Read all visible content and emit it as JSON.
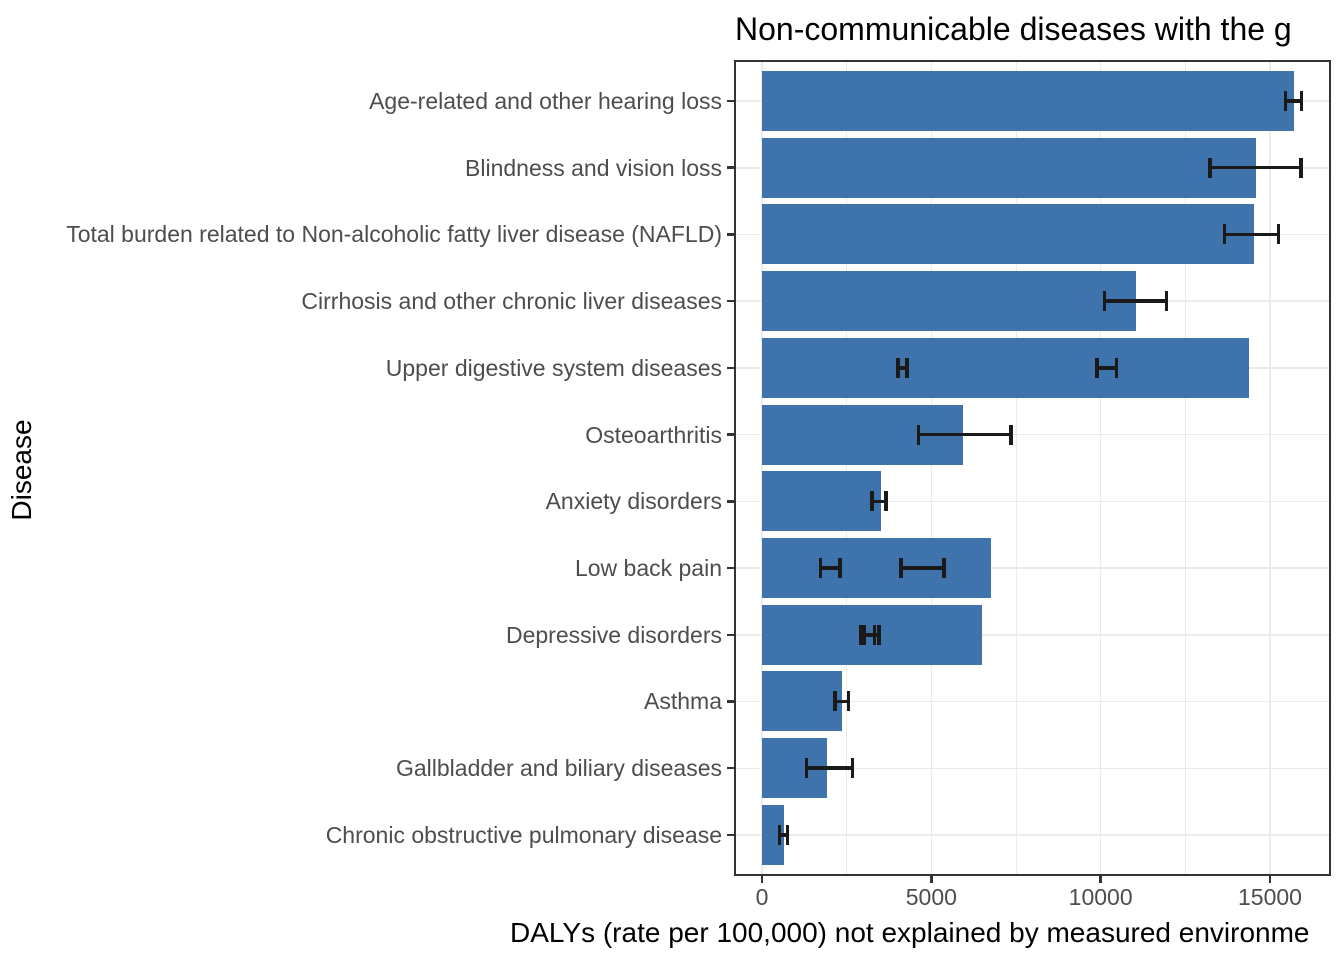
{
  "chart_data": {
    "type": "bar",
    "orientation": "horizontal",
    "title": "Non-communicable diseases with the g",
    "xlabel": "DALYs (rate per 100,000) not explained by measured environme",
    "ylabel": "Disease",
    "xlim": [
      -800,
      16750
    ],
    "x_major_ticks": [
      0,
      5000,
      10000,
      15000
    ],
    "x_tick_labels": [
      "0",
      "5000",
      "10000",
      "15000"
    ],
    "x_minor_gridlines": [
      2500,
      7500,
      12500
    ],
    "grid": true,
    "legend": false,
    "bar_color": "#3E73AB",
    "error_bar_color": "#1A1A1A",
    "grid_color": "#EBEBEB",
    "axis_text_color": "#4D4D4D",
    "panel_border_color": "#333333",
    "categories": [
      "Age-related and other hearing loss",
      "Blindness and vision loss",
      "Total burden related to Non-alcoholic fatty liver disease (NAFLD)",
      "Cirrhosis and other chronic liver diseases",
      "Upper digestive system diseases",
      "Osteoarthritis",
      "Anxiety disorders",
      "Low back pain",
      "Depressive disorders",
      "Asthma",
      "Gallbladder and biliary diseases",
      "Chronic obstructive pulmonary disease"
    ],
    "values": [
      15700,
      14590,
      14530,
      11030,
      14390,
      5930,
      3520,
      6760,
      6510,
      2360,
      1920,
      640
    ],
    "error_bars": [
      [
        [
          15410,
          15980
        ]
      ],
      [
        [
          13180,
          15960
        ]
      ],
      [
        [
          13610,
          15300
        ]
      ],
      [
        [
          10060,
          11990
        ]
      ],
      [
        [
          3960,
          4330
        ],
        [
          9840,
          10520
        ]
      ],
      [
        [
          4570,
          7410
        ]
      ],
      [
        [
          3190,
          3720
        ]
      ],
      [
        [
          1670,
          2360
        ],
        [
          4060,
          5430
        ]
      ],
      [
        [
          2870,
          3370
        ],
        [
          2980,
          3510
        ]
      ],
      [
        [
          2110,
          2600
        ]
      ],
      [
        [
          1260,
          2730
        ]
      ],
      [
        [
          470,
          810
        ]
      ]
    ]
  }
}
